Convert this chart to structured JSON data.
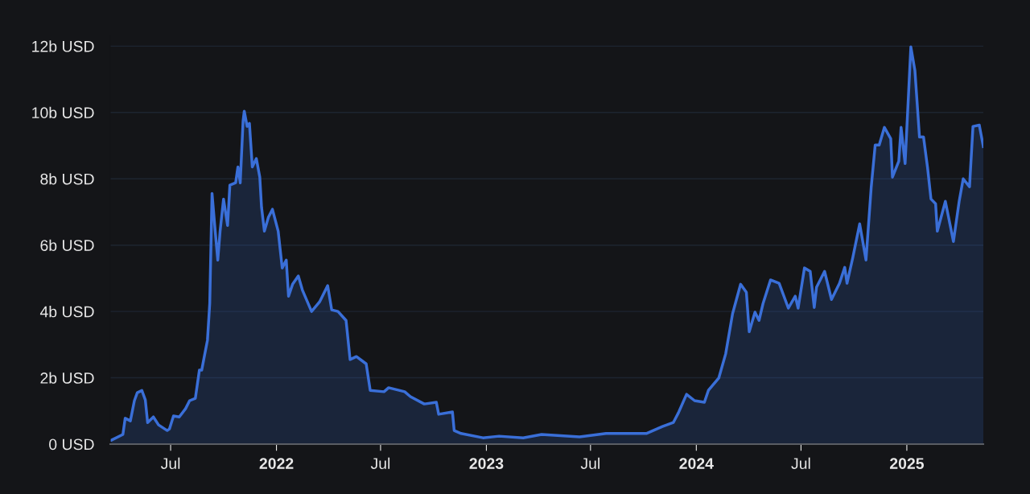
{
  "chart_data": {
    "type": "area",
    "color": "#3a6fd8",
    "grid": "y",
    "relative": false,
    "xlim": [
      "2021-03-18",
      "2025-05-14"
    ],
    "xticks": [
      {
        "value": "2021-07-01",
        "label": "Jul"
      },
      {
        "value": "2022-01-01",
        "label": "2022"
      },
      {
        "value": "2022-07-01",
        "label": "Jul"
      },
      {
        "value": "2023-01-01",
        "label": "2023"
      },
      {
        "value": "2023-07-01",
        "label": "Jul"
      },
      {
        "value": "2024-01-01",
        "label": "2024"
      },
      {
        "value": "2024-07-01",
        "label": "Jul"
      },
      {
        "value": "2025-01-01",
        "label": "2025"
      }
    ],
    "ylim": [
      0,
      12.3
    ],
    "yticks": [
      {
        "value": 0,
        "label": "0 USD"
      },
      {
        "value": 2,
        "label": "2b USD"
      },
      {
        "value": 4,
        "label": "4b USD"
      },
      {
        "value": 6,
        "label": "6b USD"
      },
      {
        "value": 8,
        "label": "8b USD"
      },
      {
        "value": 10,
        "label": "10b USD"
      },
      {
        "value": 12,
        "label": "12b USD"
      }
    ],
    "x": [
      "2021-03-20",
      "2021-04-09",
      "2021-04-13",
      "2021-04-22",
      "2021-04-29",
      "2021-05-04",
      "2021-05-12",
      "2021-05-18",
      "2021-05-22",
      "2021-06-01",
      "2021-06-10",
      "2021-06-25",
      "2021-06-29",
      "2021-07-06",
      "2021-07-16",
      "2021-07-27",
      "2021-08-03",
      "2021-08-13",
      "2021-08-20",
      "2021-08-24",
      "2021-09-03",
      "2021-09-07",
      "2021-09-11",
      "2021-09-16",
      "2021-09-21",
      "2021-09-25",
      "2021-10-01",
      "2021-10-08",
      "2021-10-12",
      "2021-10-22",
      "2021-10-26",
      "2021-10-30",
      "2021-11-04",
      "2021-11-06",
      "2021-11-11",
      "2021-11-15",
      "2021-11-20",
      "2021-11-27",
      "2021-12-03",
      "2021-12-06",
      "2021-12-11",
      "2021-12-18",
      "2021-12-25",
      "2022-01-04",
      "2022-01-11",
      "2022-01-18",
      "2022-01-22",
      "2022-01-29",
      "2022-02-08",
      "2022-02-15",
      "2022-03-03",
      "2022-03-17",
      "2022-03-31",
      "2022-04-07",
      "2022-04-18",
      "2022-05-02",
      "2022-05-09",
      "2022-05-20",
      "2022-06-06",
      "2022-06-13",
      "2022-07-07",
      "2022-07-15",
      "2022-07-22",
      "2022-08-12",
      "2022-08-22",
      "2022-09-15",
      "2022-10-06",
      "2022-10-10",
      "2022-11-03",
      "2022-11-06",
      "2022-11-18",
      "2022-12-26",
      "2023-01-23",
      "2023-03-06",
      "2023-04-07",
      "2023-06-12",
      "2023-07-28",
      "2023-10-06",
      "2023-11-03",
      "2023-11-22",
      "2023-12-01",
      "2023-12-15",
      "2023-12-29",
      "2024-01-15",
      "2024-01-22",
      "2024-02-09",
      "2024-02-21",
      "2024-03-04",
      "2024-03-18",
      "2024-03-28",
      "2024-04-02",
      "2024-04-12",
      "2024-04-19",
      "2024-04-26",
      "2024-05-09",
      "2024-05-24",
      "2024-06-09",
      "2024-06-21",
      "2024-06-26",
      "2024-07-07",
      "2024-07-17",
      "2024-07-24",
      "2024-07-28",
      "2024-08-11",
      "2024-08-23",
      "2024-09-06",
      "2024-09-15",
      "2024-09-19",
      "2024-09-29",
      "2024-10-11",
      "2024-10-22",
      "2024-10-31",
      "2024-11-07",
      "2024-11-14",
      "2024-11-23",
      "2024-12-04",
      "2024-12-07",
      "2024-12-18",
      "2024-12-22",
      "2024-12-29",
      "2025-01-08",
      "2025-01-15",
      "2025-01-23",
      "2025-01-30",
      "2025-02-06",
      "2025-02-12",
      "2025-02-20",
      "2025-02-23",
      "2025-03-09",
      "2025-03-23",
      "2025-04-02",
      "2025-04-09",
      "2025-04-20",
      "2025-04-26",
      "2025-05-07",
      "2025-05-14"
    ],
    "values": [
      0.12,
      0.29,
      0.78,
      0.7,
      1.31,
      1.55,
      1.62,
      1.33,
      0.65,
      0.82,
      0.58,
      0.41,
      0.46,
      0.85,
      0.82,
      1.07,
      1.31,
      1.38,
      2.23,
      2.23,
      3.13,
      4.24,
      7.56,
      6.52,
      5.55,
      6.42,
      7.39,
      6.59,
      7.81,
      7.88,
      8.36,
      7.88,
      9.75,
      10.04,
      9.58,
      9.67,
      8.36,
      8.61,
      8.05,
      7.15,
      6.42,
      6.84,
      7.08,
      6.42,
      5.31,
      5.55,
      4.46,
      4.82,
      5.07,
      4.65,
      4.0,
      4.29,
      4.78,
      4.05,
      4.0,
      3.73,
      2.55,
      2.64,
      2.42,
      1.62,
      1.58,
      1.7,
      1.67,
      1.58,
      1.43,
      1.21,
      1.26,
      0.9,
      0.97,
      0.41,
      0.32,
      0.19,
      0.24,
      0.19,
      0.29,
      0.22,
      0.32,
      0.32,
      0.53,
      0.65,
      0.95,
      1.5,
      1.31,
      1.26,
      1.62,
      1.99,
      2.72,
      3.93,
      4.82,
      4.58,
      3.39,
      3.98,
      3.73,
      4.24,
      4.95,
      4.85,
      4.1,
      4.46,
      4.1,
      5.31,
      5.21,
      4.12,
      4.73,
      5.21,
      4.36,
      4.85,
      5.33,
      4.85,
      5.62,
      6.64,
      5.55,
      7.73,
      9.02,
      9.02,
      9.55,
      9.21,
      8.05,
      8.53,
      9.55,
      8.46,
      11.98,
      11.27,
      9.26,
      9.26,
      8.34,
      7.39,
      7.25,
      6.42,
      7.32,
      6.11,
      7.32,
      8.0,
      7.76,
      9.58,
      9.62,
      8.97
    ]
  }
}
